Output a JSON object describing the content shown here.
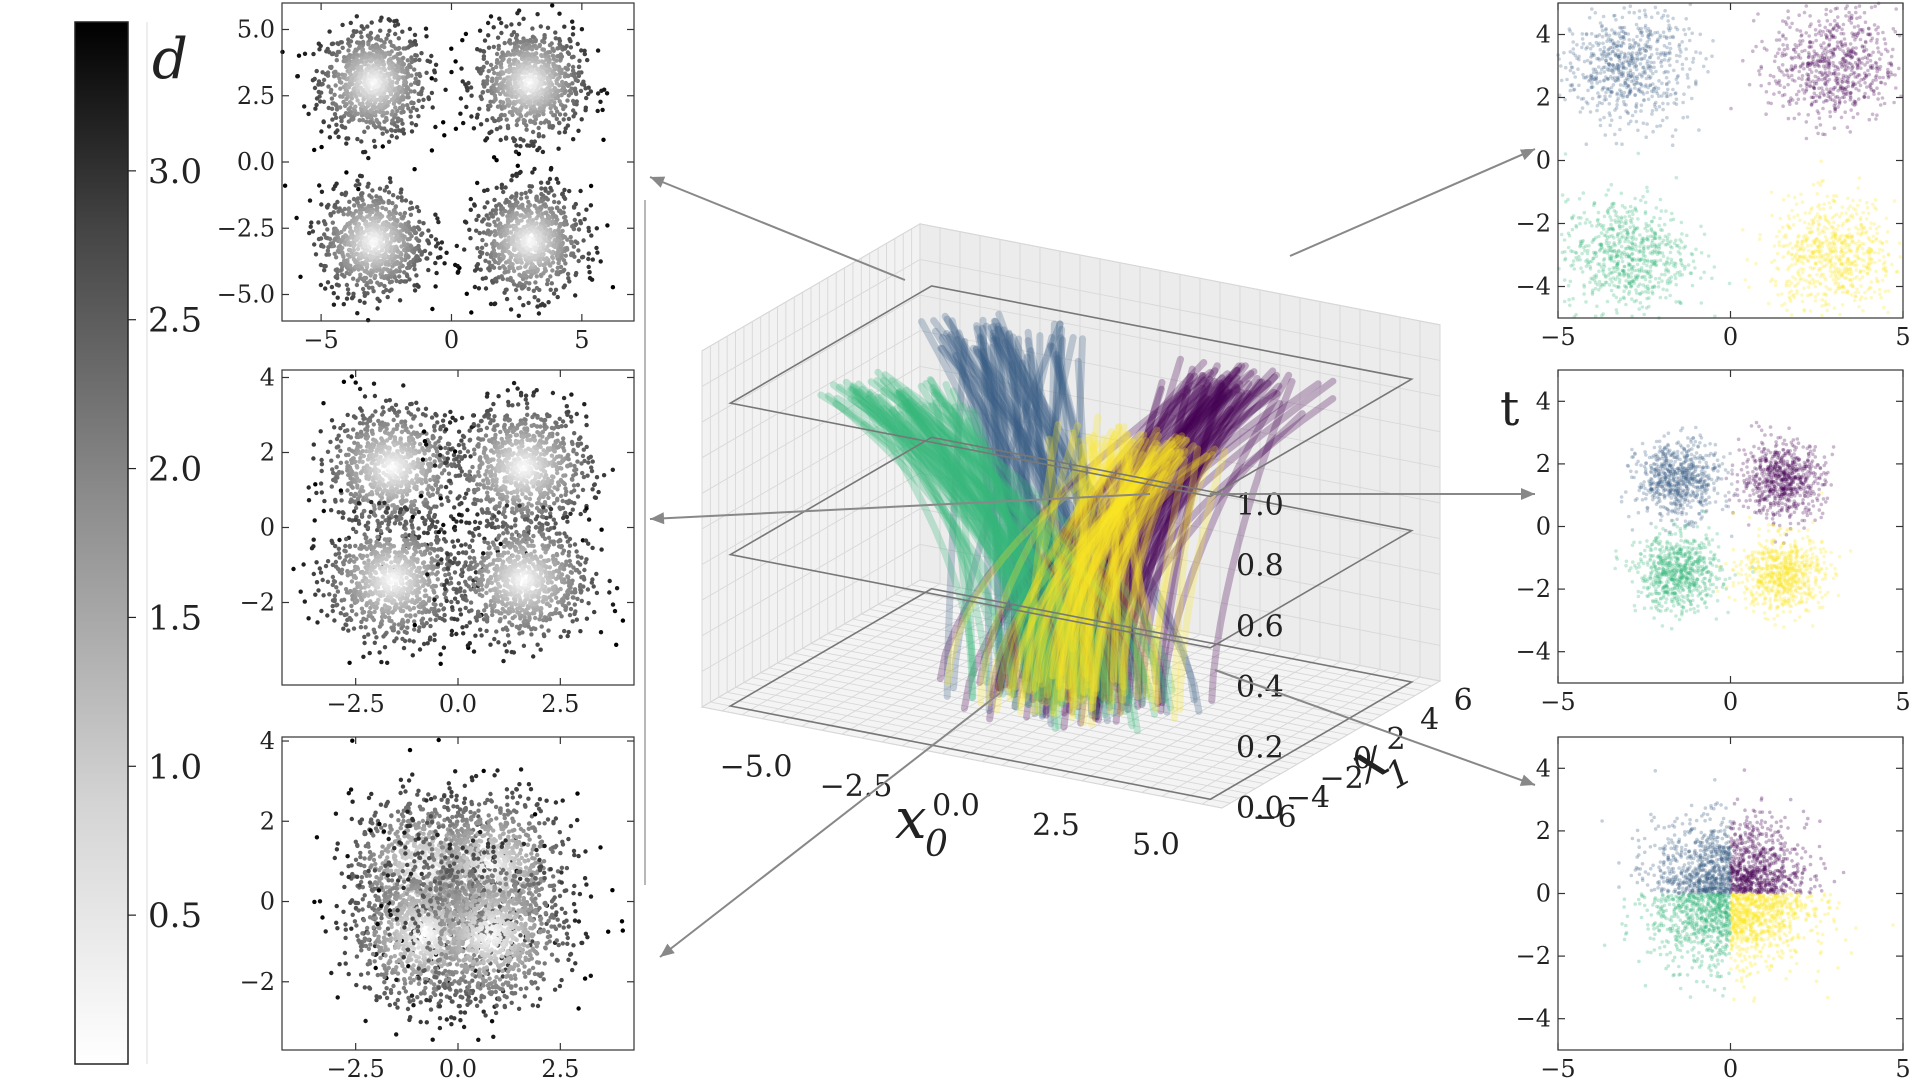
{
  "chart_data": [
    {
      "id": "colorbar",
      "type": "colorbar",
      "label": "d",
      "ticks": [
        "3.0",
        "2.5",
        "2.0",
        "1.5",
        "1.0",
        "0.5"
      ],
      "tick_values": [
        3.0,
        2.5,
        2.0,
        1.5,
        1.0,
        0.5
      ],
      "range": [
        0.0,
        3.5
      ],
      "colormap": "gray (white to black)"
    },
    {
      "id": "left-top",
      "type": "scatter",
      "xlim": [
        -6.5,
        7.0
      ],
      "ylim": [
        -6.0,
        6.0
      ],
      "xticks": [
        -5,
        0,
        5
      ],
      "xtick_labels": [
        "−5",
        "0",
        "5"
      ],
      "yticks": [
        5.0,
        2.5,
        0.0,
        -2.5,
        -5.0
      ],
      "ytick_labels": [
        "5.0",
        "2.5",
        "0.0",
        "−2.5",
        "−5.0"
      ],
      "clusters": [
        {
          "center": [
            -3,
            3
          ],
          "std": 1.0
        },
        {
          "center": [
            3,
            3
          ],
          "std": 1.0
        },
        {
          "center": [
            -3,
            -3
          ],
          "std": 1.0
        },
        {
          "center": [
            3,
            -3
          ],
          "std": 1.0
        }
      ],
      "shading": "gray by d"
    },
    {
      "id": "left-mid",
      "type": "scatter",
      "xlim": [
        -4.3,
        4.3
      ],
      "ylim": [
        -4.2,
        4.2
      ],
      "xticks": [
        -2.5,
        0.0,
        2.5
      ],
      "xtick_labels": [
        "−2.5",
        "0.0",
        "2.5"
      ],
      "yticks": [
        4,
        2,
        0,
        -2
      ],
      "ytick_labels": [
        "4",
        "2",
        "0",
        "−2"
      ],
      "clusters": [
        {
          "center": [
            -1.6,
            1.6
          ],
          "std": 0.8
        },
        {
          "center": [
            1.6,
            1.6
          ],
          "std": 0.8
        },
        {
          "center": [
            -1.6,
            -1.4
          ],
          "std": 0.8
        },
        {
          "center": [
            1.6,
            -1.4
          ],
          "std": 0.8
        }
      ],
      "shading": "gray by d"
    },
    {
      "id": "left-bottom",
      "type": "scatter",
      "xlim": [
        -4.3,
        4.3
      ],
      "ylim": [
        -3.7,
        4.1
      ],
      "xticks": [
        -2.5,
        0.0,
        2.5
      ],
      "xtick_labels": [
        "−2.5",
        "0.0",
        "2.5"
      ],
      "yticks": [
        4,
        2,
        0,
        -2
      ],
      "ytick_labels": [
        "4",
        "2",
        "0",
        "−2"
      ],
      "clusters": [
        {
          "center": [
            -0.8,
            0.8
          ],
          "std": 0.9
        },
        {
          "center": [
            0.8,
            0.8
          ],
          "std": 0.9
        },
        {
          "center": [
            -0.8,
            -0.8
          ],
          "std": 0.9
        },
        {
          "center": [
            0.8,
            -0.8
          ],
          "std": 0.9
        }
      ],
      "shading": "gray by d"
    },
    {
      "id": "right-top",
      "type": "scatter",
      "xlim": [
        -5,
        5
      ],
      "ylim": [
        -5,
        5
      ],
      "xticks": [
        -5,
        0,
        5
      ],
      "xtick_labels": [
        "−5",
        "0",
        "5"
      ],
      "yticks": [
        4,
        2,
        0,
        -2,
        -4
      ],
      "ytick_labels": [
        "4",
        "2",
        "0",
        "−2",
        "−4"
      ],
      "clusters": [
        {
          "center": [
            -3,
            3
          ],
          "std": 0.9,
          "color": "#3b5f86"
        },
        {
          "center": [
            3,
            3
          ],
          "std": 0.9,
          "color": "#440154"
        },
        {
          "center": [
            -3,
            -3
          ],
          "std": 0.9,
          "color": "#35b779"
        },
        {
          "center": [
            3,
            -3
          ],
          "std": 0.9,
          "color": "#fde725"
        }
      ]
    },
    {
      "id": "right-mid",
      "type": "scatter",
      "xlim": [
        -5,
        5
      ],
      "ylim": [
        -5,
        5
      ],
      "xticks": [
        -5,
        0,
        5
      ],
      "xtick_labels": [
        "−5",
        "0",
        "5"
      ],
      "yticks": [
        4,
        2,
        0,
        -2,
        -4
      ],
      "ytick_labels": [
        "4",
        "2",
        "0",
        "−2",
        "−4"
      ],
      "clusters": [
        {
          "center": [
            -1.5,
            1.5
          ],
          "std": 0.6,
          "color": "#3b5f86"
        },
        {
          "center": [
            1.5,
            1.5
          ],
          "std": 0.6,
          "color": "#440154"
        },
        {
          "center": [
            -1.5,
            -1.5
          ],
          "std": 0.6,
          "color": "#35b779"
        },
        {
          "center": [
            1.5,
            -1.5
          ],
          "std": 0.6,
          "color": "#fde725"
        }
      ]
    },
    {
      "id": "right-bottom",
      "type": "scatter",
      "xlim": [
        -5,
        5
      ],
      "ylim": [
        -5,
        5
      ],
      "xticks": [
        -5,
        0,
        5
      ],
      "xtick_labels": [
        "−5",
        "0",
        "5"
      ],
      "yticks": [
        4,
        2,
        0,
        -2,
        -4
      ],
      "ytick_labels": [
        "4",
        "2",
        "0",
        "−2",
        "−4"
      ],
      "quadrants": [
        {
          "quadrant": "top-left",
          "color": "#3b5f86"
        },
        {
          "quadrant": "top-right",
          "color": "#440154"
        },
        {
          "quadrant": "bottom-left",
          "color": "#35b779"
        },
        {
          "quadrant": "bottom-right",
          "color": "#fde725"
        }
      ]
    },
    {
      "id": "center-3d",
      "type": "3d-trajectories",
      "xlabel": "x",
      "xlabel_sub": "0",
      "ylabel": "x",
      "ylabel_sub": "1",
      "zlabel": "t",
      "xticks": [
        "−5.0",
        "−2.5",
        "0.0",
        "2.5",
        "5.0"
      ],
      "yticks": [
        "−6",
        "−4",
        "−2",
        "0",
        "2",
        "4",
        "6"
      ],
      "zticks": [
        "0.0",
        "0.2",
        "0.4",
        "0.6",
        "0.8",
        "1.0"
      ],
      "xlim": [
        -6.5,
        6.5
      ],
      "ylim": [
        -6.5,
        6.5
      ],
      "zlim": [
        0.0,
        1.05
      ],
      "slices_t": [
        1.0,
        0.5,
        0.0
      ],
      "groups": [
        {
          "color": "#3b5f86",
          "end": [
            -3,
            3
          ]
        },
        {
          "color": "#440154",
          "end": [
            3,
            3
          ]
        },
        {
          "color": "#35b779",
          "end": [
            -3,
            -3
          ]
        },
        {
          "color": "#fde725",
          "end": [
            3,
            -3
          ]
        }
      ]
    }
  ]
}
